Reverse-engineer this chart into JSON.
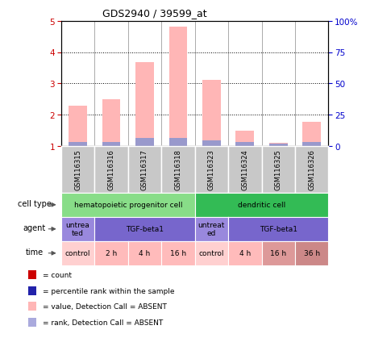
{
  "title": "GDS2940 / 39599_at",
  "samples": [
    "GSM116315",
    "GSM116316",
    "GSM116317",
    "GSM116318",
    "GSM116323",
    "GSM116324",
    "GSM116325",
    "GSM116326"
  ],
  "pink_values": [
    2.28,
    2.48,
    3.68,
    4.82,
    3.1,
    1.48,
    1.1,
    1.78
  ],
  "blue_values": [
    1.12,
    1.12,
    1.25,
    1.25,
    1.18,
    1.12,
    1.08,
    1.12
  ],
  "left_ylim": [
    1,
    5
  ],
  "left_yticks": [
    1,
    2,
    3,
    4,
    5
  ],
  "right_ylim": [
    0,
    100
  ],
  "right_yticks": [
    0,
    25,
    50,
    75,
    100
  ],
  "right_yticklabels": [
    "0",
    "25",
    "50",
    "75",
    "100%"
  ],
  "left_tick_color": "#cc0000",
  "right_tick_color": "#0000cc",
  "bar_width": 0.55,
  "pink_color": "#ffb6b6",
  "blue_color": "#9999cc",
  "sample_bg": "#c8c8c8",
  "cell_type_row": {
    "label": "cell type",
    "groups": [
      {
        "text": "hematopoietic progenitor cell",
        "start": 0,
        "end": 3,
        "color": "#88dd88"
      },
      {
        "text": "dendritic cell",
        "start": 4,
        "end": 7,
        "color": "#33bb55"
      }
    ]
  },
  "agent_row": {
    "label": "agent",
    "groups": [
      {
        "text": "untrea\nted",
        "start": 0,
        "end": 0,
        "color": "#9988dd"
      },
      {
        "text": "TGF-beta1",
        "start": 1,
        "end": 3,
        "color": "#7766cc"
      },
      {
        "text": "untreat\ned",
        "start": 4,
        "end": 4,
        "color": "#9988dd"
      },
      {
        "text": "TGF-beta1",
        "start": 5,
        "end": 7,
        "color": "#7766cc"
      }
    ]
  },
  "time_row": {
    "label": "time",
    "groups": [
      {
        "text": "control",
        "start": 0,
        "end": 0,
        "color": "#ffd0d0"
      },
      {
        "text": "2 h",
        "start": 1,
        "end": 1,
        "color": "#ffbbbb"
      },
      {
        "text": "4 h",
        "start": 2,
        "end": 2,
        "color": "#ffbbbb"
      },
      {
        "text": "16 h",
        "start": 3,
        "end": 3,
        "color": "#ffbbbb"
      },
      {
        "text": "control",
        "start": 4,
        "end": 4,
        "color": "#ffd0d0"
      },
      {
        "text": "4 h",
        "start": 5,
        "end": 5,
        "color": "#ffbbbb"
      },
      {
        "text": "16 h",
        "start": 6,
        "end": 6,
        "color": "#dd9999"
      },
      {
        "text": "36 h",
        "start": 7,
        "end": 7,
        "color": "#cc8888"
      }
    ]
  },
  "legend": [
    {
      "color": "#cc0000",
      "label": "count"
    },
    {
      "color": "#2222aa",
      "label": "percentile rank within the sample"
    },
    {
      "color": "#ffb6b6",
      "label": "value, Detection Call = ABSENT"
    },
    {
      "color": "#aaaadd",
      "label": "rank, Detection Call = ABSENT"
    }
  ]
}
